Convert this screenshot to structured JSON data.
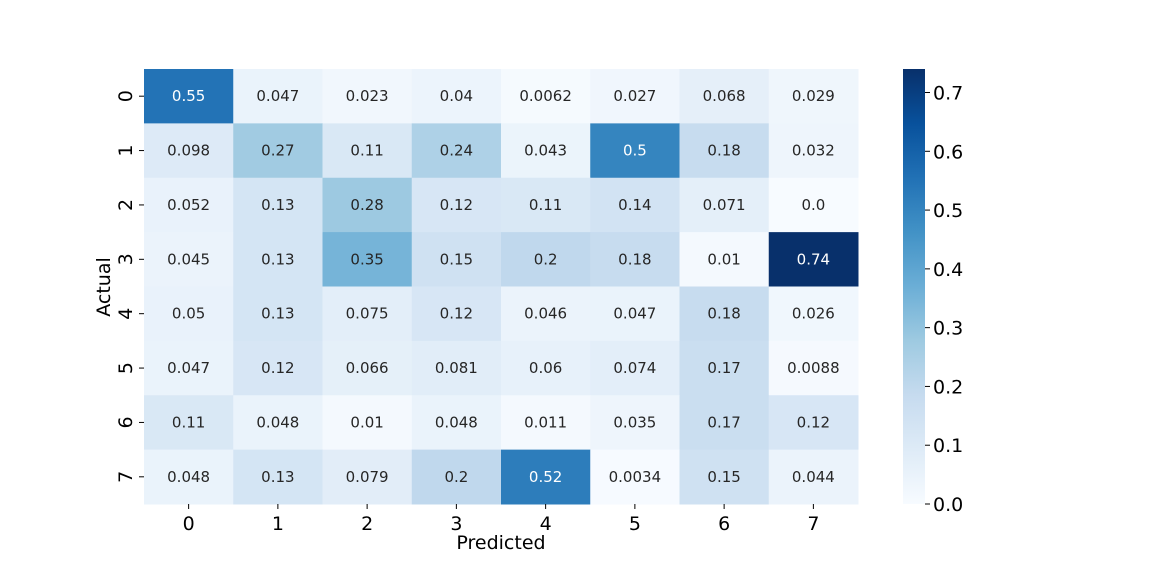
{
  "chart_data": {
    "type": "heatmap",
    "title": "",
    "xlabel": "Predicted",
    "ylabel": "Actual",
    "x_categories": [
      "0",
      "1",
      "2",
      "3",
      "4",
      "5",
      "6",
      "7"
    ],
    "y_categories": [
      "0",
      "1",
      "2",
      "3",
      "4",
      "5",
      "6",
      "7"
    ],
    "values": [
      [
        0.55,
        0.047,
        0.023,
        0.04,
        0.0062,
        0.027,
        0.068,
        0.029
      ],
      [
        0.098,
        0.27,
        0.11,
        0.24,
        0.043,
        0.5,
        0.18,
        0.032
      ],
      [
        0.052,
        0.13,
        0.28,
        0.12,
        0.11,
        0.14,
        0.071,
        0.0
      ],
      [
        0.045,
        0.13,
        0.35,
        0.15,
        0.2,
        0.18,
        0.01,
        0.74
      ],
      [
        0.05,
        0.13,
        0.075,
        0.12,
        0.046,
        0.047,
        0.18,
        0.026
      ],
      [
        0.047,
        0.12,
        0.066,
        0.081,
        0.06,
        0.074,
        0.17,
        0.0088
      ],
      [
        0.11,
        0.048,
        0.01,
        0.048,
        0.011,
        0.035,
        0.17,
        0.12
      ],
      [
        0.048,
        0.13,
        0.079,
        0.2,
        0.52,
        0.0034,
        0.15,
        0.044
      ]
    ],
    "cell_labels": [
      [
        "0.55",
        "0.047",
        "0.023",
        "0.04",
        "0.0062",
        "0.027",
        "0.068",
        "0.029"
      ],
      [
        "0.098",
        "0.27",
        "0.11",
        "0.24",
        "0.043",
        "0.5",
        "0.18",
        "0.032"
      ],
      [
        "0.052",
        "0.13",
        "0.28",
        "0.12",
        "0.11",
        "0.14",
        "0.071",
        "0.0"
      ],
      [
        "0.045",
        "0.13",
        "0.35",
        "0.15",
        "0.2",
        "0.18",
        "0.01",
        "0.74"
      ],
      [
        "0.05",
        "0.13",
        "0.075",
        "0.12",
        "0.046",
        "0.047",
        "0.18",
        "0.026"
      ],
      [
        "0.047",
        "0.12",
        "0.066",
        "0.081",
        "0.06",
        "0.074",
        "0.17",
        "0.0088"
      ],
      [
        "0.11",
        "0.048",
        "0.01",
        "0.048",
        "0.011",
        "0.035",
        "0.17",
        "0.12"
      ],
      [
        "0.048",
        "0.13",
        "0.079",
        "0.2",
        "0.52",
        "0.0034",
        "0.15",
        "0.044"
      ]
    ],
    "colormap": "Blues",
    "colorbar": {
      "vmin": 0.0,
      "vmax": 0.74,
      "ticks": [
        0.0,
        0.1,
        0.2,
        0.3,
        0.4,
        0.5,
        0.6,
        0.7
      ],
      "tick_labels": [
        "0.0",
        "0.1",
        "0.2",
        "0.3",
        "0.4",
        "0.5",
        "0.6",
        "0.7"
      ]
    },
    "grid": false,
    "legend": "none"
  }
}
